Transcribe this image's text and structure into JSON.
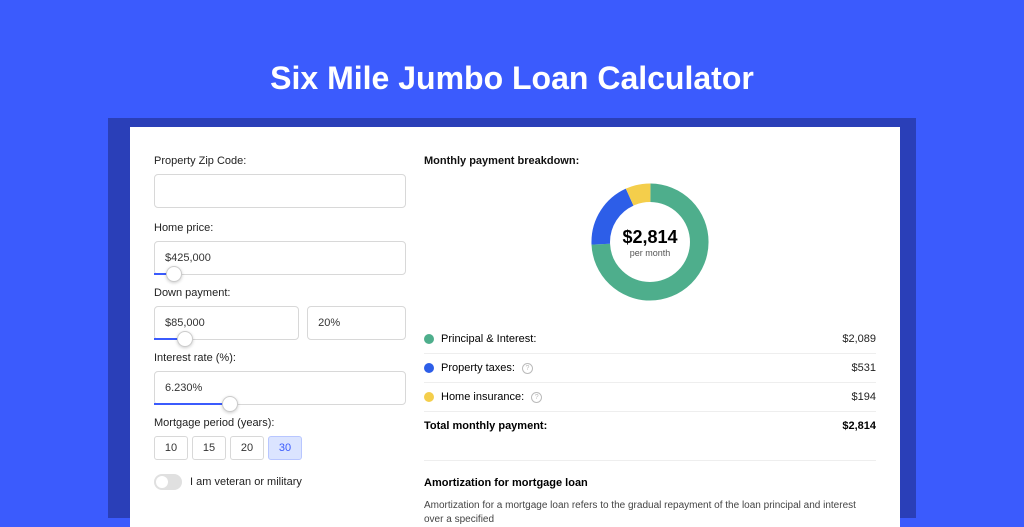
{
  "page": {
    "background_color": "#3b5bfd",
    "title": "Six Mile Jumbo Loan Calculator",
    "title_color": "#ffffff"
  },
  "form": {
    "zip": {
      "label": "Property Zip Code:",
      "value": ""
    },
    "home_price": {
      "label": "Home price:",
      "value": "$425,000",
      "slider_pct": 8
    },
    "down_payment": {
      "label": "Down payment:",
      "amount": "$85,000",
      "percent": "20%",
      "slider_pct": 20
    },
    "interest_rate": {
      "label": "Interest rate (%):",
      "value": "6.230%",
      "slider_pct": 30
    },
    "term": {
      "label": "Mortgage period (years):",
      "options": [
        "10",
        "15",
        "20",
        "30"
      ],
      "selected": "30"
    },
    "veteran": {
      "label": "I am veteran or military",
      "on": false
    }
  },
  "breakdown": {
    "title": "Monthly payment breakdown:",
    "donut": {
      "center_amount": "$2,814",
      "center_sub": "per month",
      "segments": [
        {
          "key": "pi",
          "value": 2089,
          "color": "#4eae8c",
          "pct": 74.2
        },
        {
          "key": "tax",
          "value": 531,
          "color": "#2d5ee8",
          "pct": 18.9
        },
        {
          "key": "ins",
          "value": 194,
          "color": "#f4ce4b",
          "pct": 6.9
        }
      ],
      "ring_width": 18,
      "background": "#ffffff"
    },
    "rows": [
      {
        "label": "Principal & Interest:",
        "value": "$2,089",
        "color": "#4eae8c",
        "info": false
      },
      {
        "label": "Property taxes:",
        "value": "$531",
        "color": "#2d5ee8",
        "info": true
      },
      {
        "label": "Home insurance:",
        "value": "$194",
        "color": "#f4ce4b",
        "info": true
      }
    ],
    "total": {
      "label": "Total monthly payment:",
      "value": "$2,814"
    }
  },
  "amortization": {
    "title": "Amortization for mortgage loan",
    "desc": "Amortization for a mortgage loan refers to the gradual repayment of the loan principal and interest over a specified"
  }
}
